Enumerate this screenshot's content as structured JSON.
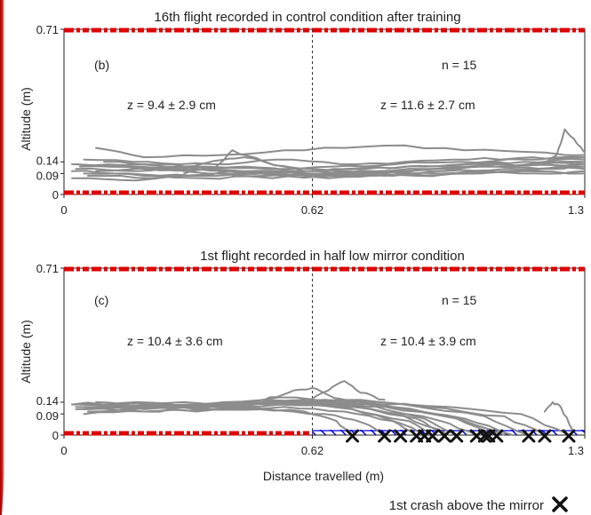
{
  "figure": {
    "xlabel": "Distance travelled (m)",
    "footer_legend": "1st crash above the mirror",
    "footer_marker_icon": "cross-icon"
  },
  "chart_data": [
    {
      "type": "line",
      "title": "16th flight recorded in control condition after training",
      "panel_label": "(b)",
      "n_label": "n = 15",
      "z_left": "z = 9.4 ± 2.9 cm",
      "z_right": "z = 11.6 ± 2.7 cm",
      "ylabel": "Altitude (m)",
      "xlim": [
        0,
        1.3
      ],
      "ylim": [
        0,
        0.71
      ],
      "x_ticks": [
        "0",
        "0.62",
        "1.3"
      ],
      "y_ticks": [
        "0",
        "0.09",
        "0.14",
        "0.71"
      ],
      "divider_x": 0.62,
      "colors": {
        "track": "#8c8c8c",
        "border": "#e00000",
        "divider": "#333333"
      },
      "series": [
        {
          "x": [
            0.02,
            0.15,
            0.3,
            0.45,
            0.6,
            0.75,
            0.9,
            1.05,
            1.2,
            1.3
          ],
          "y": [
            0.13,
            0.12,
            0.11,
            0.12,
            0.1,
            0.11,
            0.12,
            0.13,
            0.13,
            0.14
          ]
        },
        {
          "x": [
            0.03,
            0.18,
            0.33,
            0.48,
            0.63,
            0.78,
            0.93,
            1.08,
            1.23,
            1.3
          ],
          "y": [
            0.11,
            0.1,
            0.12,
            0.09,
            0.1,
            0.09,
            0.11,
            0.12,
            0.11,
            0.12
          ]
        },
        {
          "x": [
            0.05,
            0.2,
            0.35,
            0.5,
            0.65,
            0.8,
            0.95,
            1.1,
            1.25,
            1.3
          ],
          "y": [
            0.09,
            0.08,
            0.07,
            0.08,
            0.09,
            0.08,
            0.1,
            0.11,
            0.12,
            0.11
          ]
        },
        {
          "x": [
            0.1,
            0.25,
            0.4,
            0.55,
            0.7,
            0.85,
            1.0,
            1.15,
            1.3
          ],
          "y": [
            0.14,
            0.12,
            0.1,
            0.09,
            0.11,
            0.12,
            0.13,
            0.14,
            0.15
          ]
        },
        {
          "x": [
            0.02,
            0.16,
            0.32,
            0.46,
            0.62,
            0.78,
            0.94,
            1.1,
            1.3
          ],
          "y": [
            0.1,
            0.09,
            0.08,
            0.1,
            0.09,
            0.1,
            0.11,
            0.12,
            0.13
          ]
        },
        {
          "x": [
            0.04,
            0.2,
            0.36,
            0.52,
            0.68,
            0.84,
            1.0,
            1.16,
            1.3
          ],
          "y": [
            0.12,
            0.11,
            0.09,
            0.07,
            0.08,
            0.1,
            0.12,
            0.13,
            0.14
          ]
        },
        {
          "x": [
            0.06,
            0.22,
            0.38,
            0.54,
            0.7,
            0.86,
            1.02,
            1.18,
            1.3
          ],
          "y": [
            0.08,
            0.07,
            0.09,
            0.1,
            0.08,
            0.09,
            0.1,
            0.09,
            0.1
          ]
        },
        {
          "x": [
            0.03,
            0.19,
            0.35,
            0.51,
            0.67,
            0.83,
            0.99,
            1.15,
            1.3
          ],
          "y": [
            0.13,
            0.13,
            0.12,
            0.11,
            0.12,
            0.13,
            0.14,
            0.15,
            0.16
          ]
        },
        {
          "x": [
            0.08,
            0.24,
            0.4,
            0.56,
            0.72,
            0.88,
            1.04,
            1.2,
            1.3
          ],
          "y": [
            0.1,
            0.11,
            0.1,
            0.08,
            0.09,
            0.08,
            0.09,
            0.11,
            0.12
          ]
        },
        {
          "x": [
            0.02,
            0.18,
            0.34,
            0.5,
            0.66,
            0.82,
            0.98,
            1.14,
            1.3
          ],
          "y": [
            0.07,
            0.06,
            0.08,
            0.09,
            0.07,
            0.08,
            0.09,
            0.1,
            0.09
          ]
        },
        {
          "x": [
            0.05,
            0.21,
            0.37,
            0.53,
            0.69,
            0.85,
            1.01,
            1.17,
            1.3
          ],
          "y": [
            0.15,
            0.14,
            0.13,
            0.15,
            0.13,
            0.14,
            0.15,
            0.16,
            0.15
          ]
        },
        {
          "x": [
            0.2,
            0.3,
            0.4,
            0.45,
            0.55,
            0.7,
            0.85
          ],
          "y": [
            0.11,
            0.12,
            0.15,
            0.16,
            0.12,
            0.1,
            0.09
          ]
        },
        {
          "x": [
            0.3,
            0.38,
            0.42,
            0.5,
            0.6
          ],
          "y": [
            0.09,
            0.12,
            0.19,
            0.14,
            0.1
          ]
        },
        {
          "x": [
            1.2,
            1.23,
            1.25,
            1.28,
            1.3
          ],
          "y": [
            0.13,
            0.17,
            0.28,
            0.22,
            0.18
          ]
        },
        {
          "x": [
            0.08,
            0.2,
            0.4,
            0.6,
            0.8,
            1.0,
            1.2,
            1.3
          ],
          "y": [
            0.2,
            0.16,
            0.17,
            0.19,
            0.21,
            0.19,
            0.18,
            0.17
          ]
        }
      ],
      "crashes": []
    },
    {
      "type": "line",
      "title": "1st flight recorded in half low mirror condition",
      "panel_label": "(c)",
      "n_label": "n = 15",
      "z_left": "z = 10.4 ± 3.6 cm",
      "z_right": "z = 10.4 ± 3.9 cm",
      "ylabel": "Altitude (m)",
      "xlim": [
        0,
        1.3
      ],
      "ylim": [
        0,
        0.71
      ],
      "x_ticks": [
        "0",
        "0.62",
        "1.3"
      ],
      "y_ticks": [
        "0",
        "0.09",
        "0.14",
        "0.71"
      ],
      "divider_x": 0.62,
      "mirror": {
        "from": 0.62,
        "to": 1.3,
        "color": "#0000dd"
      },
      "colors": {
        "track": "#8c8c8c",
        "border": "#e00000",
        "crash": "#111111"
      },
      "series": [
        {
          "x": [
            0.02,
            0.15,
            0.3,
            0.45,
            0.6,
            0.68,
            0.72
          ],
          "y": [
            0.13,
            0.12,
            0.12,
            0.11,
            0.1,
            0.06,
            0.0
          ]
        },
        {
          "x": [
            0.03,
            0.18,
            0.33,
            0.5,
            0.65,
            0.75,
            0.8
          ],
          "y": [
            0.11,
            0.12,
            0.1,
            0.11,
            0.09,
            0.05,
            0.0
          ]
        },
        {
          "x": [
            0.05,
            0.2,
            0.35,
            0.55,
            0.7,
            0.82,
            0.88
          ],
          "y": [
            0.09,
            0.1,
            0.11,
            0.12,
            0.1,
            0.06,
            0.0
          ]
        },
        {
          "x": [
            0.08,
            0.22,
            0.38,
            0.55,
            0.72,
            0.84,
            0.9
          ],
          "y": [
            0.14,
            0.13,
            0.12,
            0.14,
            0.11,
            0.05,
            0.0
          ]
        },
        {
          "x": [
            0.04,
            0.2,
            0.36,
            0.52,
            0.7,
            0.86,
            0.92
          ],
          "y": [
            0.12,
            0.11,
            0.13,
            0.14,
            0.12,
            0.06,
            0.0
          ]
        },
        {
          "x": [
            0.06,
            0.22,
            0.38,
            0.54,
            0.72,
            0.88,
            0.95
          ],
          "y": [
            0.1,
            0.12,
            0.11,
            0.13,
            0.12,
            0.07,
            0.0
          ]
        },
        {
          "x": [
            0.02,
            0.18,
            0.34,
            0.5,
            0.68,
            0.85,
            0.96
          ],
          "y": [
            0.13,
            0.14,
            0.12,
            0.15,
            0.13,
            0.08,
            0.0
          ]
        },
        {
          "x": [
            0.05,
            0.2,
            0.36,
            0.54,
            0.72,
            0.9,
            0.98
          ],
          "y": [
            0.11,
            0.1,
            0.12,
            0.14,
            0.12,
            0.07,
            0.0
          ]
        },
        {
          "x": [
            0.03,
            0.2,
            0.38,
            0.56,
            0.76,
            0.94,
            1.03
          ],
          "y": [
            0.12,
            0.13,
            0.12,
            0.14,
            0.13,
            0.06,
            0.0
          ]
        },
        {
          "x": [
            0.07,
            0.24,
            0.42,
            0.6,
            0.8,
            0.98,
            1.08
          ],
          "y": [
            0.1,
            0.12,
            0.13,
            0.15,
            0.12,
            0.07,
            0.0
          ]
        },
        {
          "x": [
            0.04,
            0.22,
            0.4,
            0.58,
            0.78,
            0.96,
            1.1
          ],
          "y": [
            0.13,
            0.12,
            0.14,
            0.16,
            0.13,
            0.08,
            0.0
          ]
        },
        {
          "x": [
            0.06,
            0.25,
            0.44,
            0.62,
            0.82,
            1.0,
            1.12
          ],
          "y": [
            0.11,
            0.12,
            0.13,
            0.14,
            0.12,
            0.07,
            0.0
          ]
        },
        {
          "x": [
            0.05,
            0.25,
            0.45,
            0.65,
            0.85,
            1.05,
            1.16
          ],
          "y": [
            0.12,
            0.13,
            0.12,
            0.15,
            0.13,
            0.08,
            0.0
          ]
        },
        {
          "x": [
            0.1,
            0.3,
            0.5,
            0.7,
            0.9,
            1.1,
            1.2
          ],
          "y": [
            0.12,
            0.13,
            0.14,
            0.15,
            0.12,
            0.08,
            0.0
          ]
        },
        {
          "x": [
            0.08,
            0.3,
            0.52,
            0.74,
            0.96,
            1.14,
            1.26
          ],
          "y": [
            0.13,
            0.14,
            0.13,
            0.15,
            0.12,
            0.09,
            0.0
          ]
        },
        {
          "x": [
            0.5,
            0.56,
            0.62,
            0.66,
            0.72
          ],
          "y": [
            0.15,
            0.18,
            0.2,
            0.17,
            0.14
          ]
        },
        {
          "x": [
            0.6,
            0.66,
            0.7,
            0.74,
            0.8
          ],
          "y": [
            0.14,
            0.19,
            0.23,
            0.18,
            0.15
          ]
        },
        {
          "x": [
            1.2,
            1.22,
            1.24,
            1.27
          ],
          "y": [
            0.1,
            0.14,
            0.12,
            0.02
          ]
        }
      ],
      "crashes": [
        0.72,
        0.8,
        0.84,
        0.88,
        0.9,
        0.92,
        0.95,
        0.98,
        1.03,
        1.05,
        1.06,
        1.08,
        1.16,
        1.2,
        1.26
      ]
    }
  ]
}
